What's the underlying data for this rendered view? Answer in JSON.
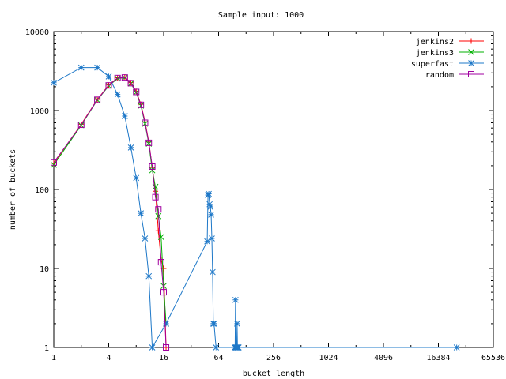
{
  "chart_data": {
    "type": "line",
    "title": "Sample input: 1000",
    "xlabel": "bucket length",
    "ylabel": "number of buckets",
    "x_scale": "log2",
    "y_scale": "log10",
    "xlim": [
      1,
      65536
    ],
    "ylim": [
      1,
      10000
    ],
    "x_ticks": [
      {
        "value": 1,
        "label": "1"
      },
      {
        "value": 4,
        "label": "4"
      },
      {
        "value": 16,
        "label": "16"
      },
      {
        "value": 64,
        "label": "64"
      },
      {
        "value": 256,
        "label": "256"
      },
      {
        "value": 1024,
        "label": "1024"
      },
      {
        "value": 4096,
        "label": "4096"
      },
      {
        "value": 16384,
        "label": "16384"
      },
      {
        "value": 65536,
        "label": "65536"
      }
    ],
    "y_ticks": [
      {
        "value": 1,
        "label": "1"
      },
      {
        "value": 10,
        "label": "10"
      },
      {
        "value": 100,
        "label": "100"
      },
      {
        "value": 1000,
        "label": "1000"
      },
      {
        "value": 10000,
        "label": "10000"
      }
    ],
    "grid": false,
    "legend": "top-right",
    "series": [
      {
        "name": "jenkins2",
        "marker": "plus",
        "color": "#ff0000",
        "points": [
          [
            1,
            215
          ],
          [
            2,
            670
          ],
          [
            3,
            1380
          ],
          [
            4,
            2100
          ],
          [
            5,
            2600
          ],
          [
            6,
            2650
          ],
          [
            7,
            2250
          ],
          [
            8,
            1750
          ],
          [
            9,
            1200
          ],
          [
            10,
            720
          ],
          [
            11,
            400
          ],
          [
            12,
            190
          ],
          [
            13,
            95
          ],
          [
            14,
            30
          ],
          [
            15,
            13
          ],
          [
            16,
            10
          ],
          [
            17,
            1
          ]
        ]
      },
      {
        "name": "jenkins3",
        "marker": "cross",
        "color": "#00b000",
        "points": [
          [
            1,
            205
          ],
          [
            2,
            650
          ],
          [
            3,
            1360
          ],
          [
            4,
            2050
          ],
          [
            5,
            2550
          ],
          [
            6,
            2600
          ],
          [
            7,
            2200
          ],
          [
            8,
            1700
          ],
          [
            9,
            1150
          ],
          [
            10,
            680
          ],
          [
            11,
            380
          ],
          [
            12,
            175
          ],
          [
            13,
            108
          ],
          [
            14,
            46
          ],
          [
            15,
            25
          ],
          [
            16,
            6
          ],
          [
            17,
            2
          ]
        ]
      },
      {
        "name": "superfast",
        "marker": "star",
        "color": "#1e78c8",
        "points": [
          [
            1,
            2250
          ],
          [
            2,
            3500
          ],
          [
            3,
            3500
          ],
          [
            4,
            2700
          ],
          [
            5,
            1600
          ],
          [
            6,
            850
          ],
          [
            7,
            340
          ],
          [
            8,
            140
          ],
          [
            9,
            50
          ],
          [
            10,
            24
          ],
          [
            11,
            8
          ],
          [
            12,
            1
          ],
          [
            17,
            2
          ],
          [
            48,
            22
          ],
          [
            49,
            85
          ],
          [
            50,
            88
          ],
          [
            51,
            65
          ],
          [
            52,
            60
          ],
          [
            53,
            48
          ],
          [
            54,
            24
          ],
          [
            55,
            9
          ],
          [
            56,
            2
          ],
          [
            57,
            2
          ],
          [
            60,
            1
          ],
          [
            96,
            1
          ],
          [
            97,
            1
          ],
          [
            98,
            4
          ],
          [
            99,
            1
          ],
          [
            100,
            1
          ],
          [
            101,
            1
          ],
          [
            102,
            2
          ],
          [
            103,
            1
          ],
          [
            104,
            1
          ],
          [
            105,
            1
          ],
          [
            106,
            1
          ],
          [
            26000,
            1
          ]
        ]
      },
      {
        "name": "random",
        "marker": "square",
        "color": "#a000a0",
        "points": [
          [
            1,
            220
          ],
          [
            2,
            660
          ],
          [
            3,
            1370
          ],
          [
            4,
            2080
          ],
          [
            5,
            2580
          ],
          [
            6,
            2620
          ],
          [
            7,
            2220
          ],
          [
            8,
            1720
          ],
          [
            9,
            1180
          ],
          [
            10,
            700
          ],
          [
            11,
            390
          ],
          [
            12,
            195
          ],
          [
            13,
            80
          ],
          [
            14,
            56
          ],
          [
            15,
            12
          ],
          [
            16,
            5
          ],
          [
            17,
            1
          ]
        ]
      }
    ]
  }
}
